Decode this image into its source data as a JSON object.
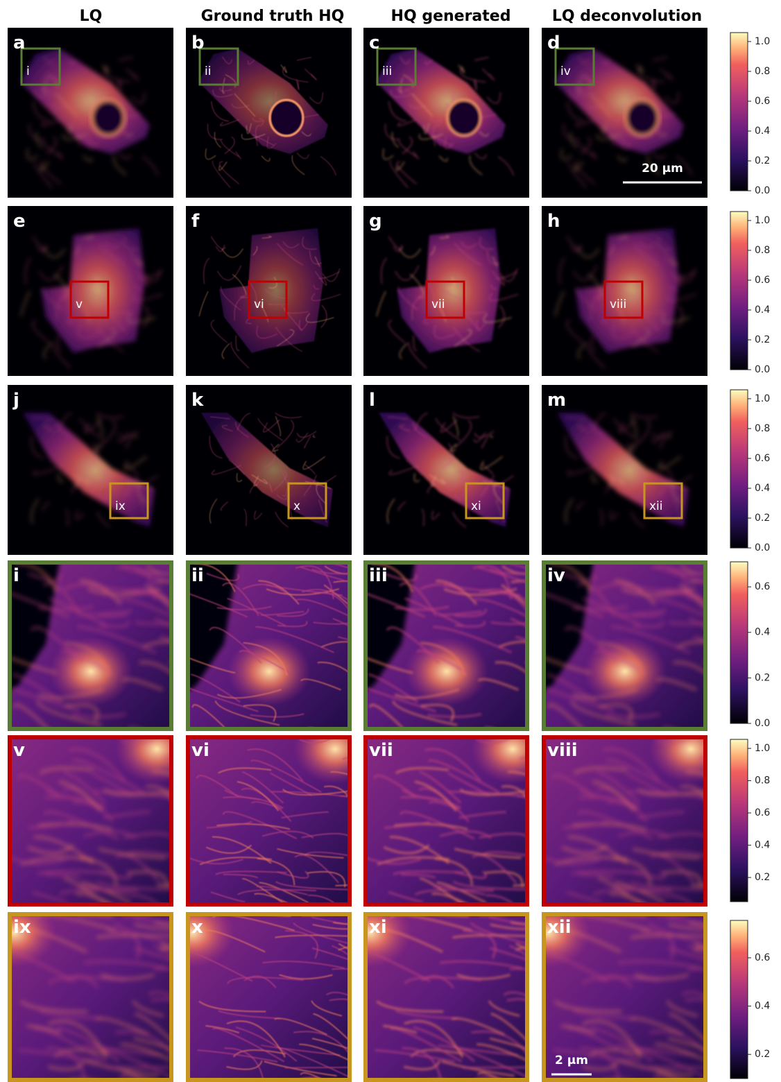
{
  "header": {
    "columns": [
      "LQ",
      "Ground truth HQ",
      "HQ generated",
      "LQ deconvolution"
    ]
  },
  "rows": [
    {
      "color": "#5a7d36",
      "panels": [
        {
          "label": "a",
          "roi": "i"
        },
        {
          "label": "b",
          "roi": "ii"
        },
        {
          "label": "c",
          "roi": "iii"
        },
        {
          "label": "d",
          "roi": "iv"
        }
      ],
      "colorbar": {
        "range": [
          0,
          1.06
        ],
        "ticks": [
          {
            "value": 0,
            "label": "0.0"
          },
          0.2,
          0.4,
          0.6,
          0.8,
          {
            "value": 1,
            "label": "1.0"
          }
        ]
      }
    },
    {
      "color": "#c00000",
      "panels": [
        {
          "label": "e",
          "roi": "v"
        },
        {
          "label": "f",
          "roi": "vi"
        },
        {
          "label": "g",
          "roi": "vii"
        },
        {
          "label": "h",
          "roi": "viii"
        }
      ],
      "colorbar": {
        "range": [
          0,
          1.06
        ],
        "ticks": [
          {
            "value": 0,
            "label": "0.0"
          },
          0.2,
          0.4,
          0.6,
          0.8,
          {
            "value": 1,
            "label": "1.0"
          }
        ]
      }
    },
    {
      "color": "#c8961e",
      "panels": [
        {
          "label": "j",
          "roi": "ix"
        },
        {
          "label": "k",
          "roi": "x"
        },
        {
          "label": "l",
          "roi": "xi"
        },
        {
          "label": "m",
          "roi": "xii"
        }
      ],
      "colorbar": {
        "range": [
          0,
          1.06
        ],
        "ticks": [
          {
            "value": 0,
            "label": "0.0"
          },
          0.2,
          0.4,
          0.6,
          0.8,
          {
            "value": 1,
            "label": "1.0"
          }
        ]
      }
    },
    {
      "color": "#5a7d36",
      "panels": [
        {
          "label": "i"
        },
        {
          "label": "ii"
        },
        {
          "label": "iii"
        },
        {
          "label": "iv"
        }
      ],
      "colorbar": {
        "range": [
          0,
          0.71
        ],
        "ticks": [
          {
            "value": 0,
            "label": "0.0"
          },
          0.2,
          0.4,
          0.6
        ]
      }
    },
    {
      "color": "#c00000",
      "panels": [
        {
          "label": "v"
        },
        {
          "label": "vi"
        },
        {
          "label": "vii"
        },
        {
          "label": "viii"
        }
      ],
      "colorbar": {
        "range": [
          0.05,
          1.056
        ],
        "ticks": [
          0.2,
          0.4,
          0.6,
          0.8,
          {
            "value": 1,
            "label": "1.0"
          }
        ]
      }
    },
    {
      "color": "#c8961e",
      "panels": [
        {
          "label": "ix"
        },
        {
          "label": "x"
        },
        {
          "label": "xi"
        },
        {
          "label": "xii"
        }
      ],
      "colorbar": {
        "range": [
          0.1,
          0.755
        ],
        "ticks": [
          0.2,
          0.4,
          0.6
        ]
      }
    }
  ],
  "scale_bars": [
    {
      "label": "20 µm"
    },
    {
      "label": "2 µm"
    }
  ]
}
